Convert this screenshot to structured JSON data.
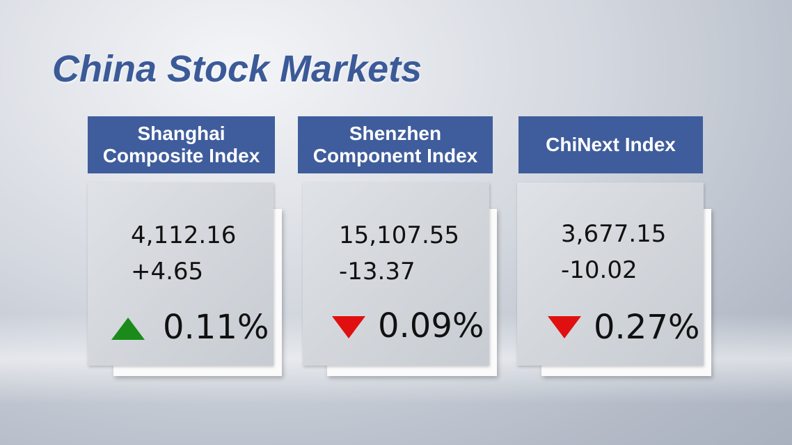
{
  "header": {
    "title": "China Stock Markets"
  },
  "cards": [
    {
      "name": [
        "Shanghai",
        "Composite Index"
      ],
      "value": "4,112.16",
      "change": "+4.65",
      "percent": "0.11%"
    },
    {
      "name": [
        "Shenzhen",
        "Component Index"
      ],
      "value": "15,107.55",
      "change": "-13.37",
      "percent": "0.09%"
    },
    {
      "name": [
        "ChiNext Index"
      ],
      "value": "3,677.15",
      "change": "-10.02",
      "percent": "0.27%"
    }
  ]
}
